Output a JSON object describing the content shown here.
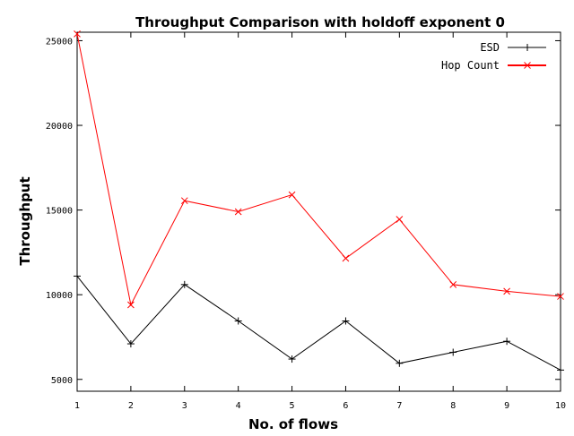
{
  "chart_data": {
    "type": "line",
    "title": "Throughput Comparison with holdoff exponent 0",
    "xlabel": "No. of flows",
    "ylabel": "Throughput",
    "x": [
      1,
      2,
      3,
      4,
      5,
      6,
      7,
      8,
      9,
      10
    ],
    "xlim": [
      1,
      10
    ],
    "ylim": [
      4300,
      25500
    ],
    "xticks": [
      "1",
      "2",
      "3",
      "4",
      "5",
      "6",
      "7",
      "8",
      "9",
      "10"
    ],
    "yticks": [
      5000,
      10000,
      15000,
      20000,
      25000
    ],
    "ytick_labels": [
      "5000",
      "10000",
      "15000",
      "20000",
      "25000"
    ],
    "grid": false,
    "legend_position": "top-right",
    "series": [
      {
        "name": "ESD",
        "color": "#000000",
        "marker": "plus",
        "values": [
          11100,
          7100,
          10600,
          8450,
          6200,
          8450,
          5950,
          6600,
          7250,
          5550
        ]
      },
      {
        "name": "Hop Count",
        "color": "#ff0000",
        "marker": "cross",
        "values": [
          25400,
          9400,
          15550,
          14900,
          15900,
          12150,
          14450,
          10600,
          10200,
          9900
        ]
      }
    ]
  }
}
